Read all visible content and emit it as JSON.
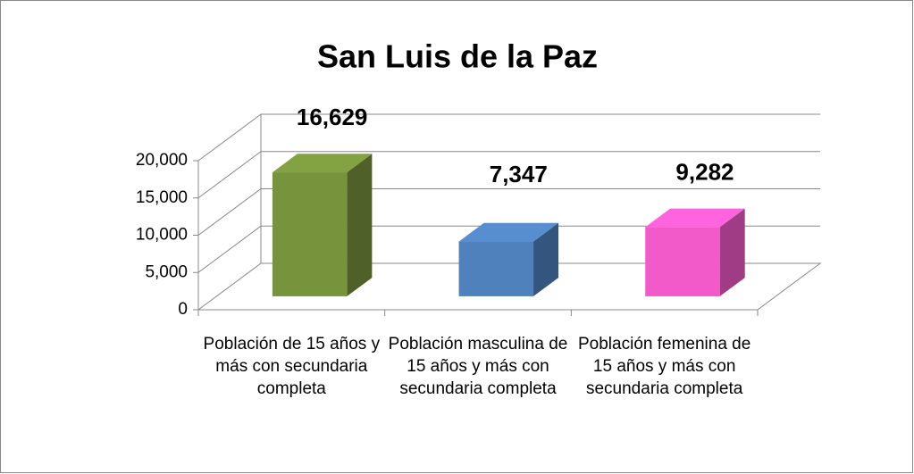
{
  "chart_data": {
    "type": "bar3d",
    "title": "San Luis de la Paz",
    "categories": [
      "Población de 15 años y más con secundaria completa",
      "Población masculina de 15 años y más con secundaria completa",
      "Población femenina de 15 años y más con secundaria completa"
    ],
    "values": [
      16629,
      7347,
      9282
    ],
    "value_labels": [
      "16,629",
      "7,347",
      "9,282"
    ],
    "colors": [
      "#77933c",
      "#4f81bd",
      "#f25ac9"
    ],
    "ylim": [
      0,
      20000
    ],
    "yticks": [
      0,
      {
        "value": 5000,
        "label": "5,000"
      },
      {
        "value": 10000,
        "label": "10,000"
      },
      {
        "value": 15000,
        "label": "15,000"
      },
      {
        "value": 20000,
        "label": "20,000"
      }
    ],
    "grid": true
  }
}
